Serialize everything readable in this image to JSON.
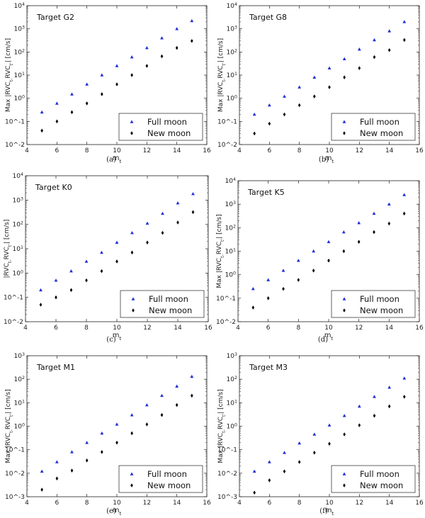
{
  "chart_data": [
    {
      "type": "scatter",
      "title": "Target G2",
      "caption": "(a)",
      "xlabel": "m_t",
      "ylabel": "Max |RVC_t-RVC_t'| [cm/s]",
      "xlim": [
        4,
        16
      ],
      "xticks": [
        "4",
        "6",
        "8",
        "10",
        "12",
        "14",
        "16"
      ],
      "yticks": [
        "10^-2",
        "10^-1",
        "10^0",
        "10^1",
        "10^2",
        "10^3",
        "10^4"
      ],
      "ylim_exp": [
        -2,
        4
      ],
      "legend_loc": "lower-right",
      "x": [
        5,
        6,
        7,
        8,
        9,
        10,
        11,
        12,
        13,
        14,
        15
      ],
      "series": [
        {
          "name": "Full moon",
          "values": [
            0.25,
            0.6,
            1.5,
            4,
            10,
            25,
            60,
            150,
            400,
            1000,
            2200
          ]
        },
        {
          "name": "New moon",
          "values": [
            0.04,
            0.1,
            0.25,
            0.6,
            1.5,
            4,
            10,
            25,
            65,
            150,
            300
          ]
        }
      ]
    },
    {
      "type": "scatter",
      "title": "Target G8",
      "caption": "(b)",
      "xlabel": "m_t",
      "ylabel": "Max |RVC_t-RVC_t'| [cm/s]",
      "xlim": [
        4,
        16
      ],
      "xticks": [
        "4",
        "6",
        "8",
        "10",
        "12",
        "14",
        "16"
      ],
      "yticks": [
        "10^-2",
        "10^-1",
        "10^0",
        "10^1",
        "10^2",
        "10^3",
        "10^4"
      ],
      "ylim_exp": [
        -2,
        4
      ],
      "legend_loc": "lower-right",
      "x": [
        5,
        6,
        7,
        8,
        9,
        10,
        11,
        12,
        13,
        14,
        15
      ],
      "series": [
        {
          "name": "Full moon",
          "values": [
            0.2,
            0.5,
            1.2,
            3,
            8,
            20,
            50,
            130,
            330,
            800,
            2000
          ]
        },
        {
          "name": "New moon",
          "values": [
            0.03,
            0.08,
            0.2,
            0.5,
            1.2,
            3,
            8,
            20,
            60,
            120,
            330
          ]
        }
      ]
    },
    {
      "type": "scatter",
      "title": "Target K0",
      "caption": "(c)",
      "xlabel": "m_t",
      "ylabel": "|RVC_t-RVC_t'| [cm/s]",
      "xlim": [
        4,
        16
      ],
      "xticks": [
        "4",
        "6",
        "8",
        "10",
        "12",
        "14",
        "16"
      ],
      "yticks": [
        "10^-2",
        "10^-1",
        "10^0",
        "10^1",
        "10^2",
        "10^3",
        "10^4"
      ],
      "ylim_exp": [
        -2,
        4
      ],
      "legend_loc": "lower-right",
      "x": [
        5,
        6,
        7,
        8,
        9,
        10,
        11,
        12,
        13,
        14,
        15
      ],
      "series": [
        {
          "name": "Full moon",
          "values": [
            0.2,
            0.5,
            1.2,
            3,
            7,
            18,
            45,
            110,
            280,
            750,
            1800
          ]
        },
        {
          "name": "New moon",
          "values": [
            0.05,
            0.1,
            0.2,
            0.5,
            1.2,
            3,
            7,
            18,
            45,
            120,
            320
          ]
        }
      ]
    },
    {
      "type": "scatter",
      "title": "Target K5",
      "caption": "(d)",
      "xlabel": "m_t",
      "ylabel": "Max |RVC_t-RVC_t'| [cm/s]",
      "xlim": [
        4,
        16
      ],
      "xticks": [
        "4",
        "6",
        "8",
        "10",
        "12",
        "14",
        "16"
      ],
      "yticks": [
        "10^-2",
        "10^-1",
        "10^0",
        "10^1",
        "10^2",
        "10^3",
        "10^4"
      ],
      "ylim_exp": [
        -2,
        4
      ],
      "legend_loc": "lower-right",
      "x": [
        5,
        6,
        7,
        8,
        9,
        10,
        11,
        12,
        13,
        14,
        15
      ],
      "series": [
        {
          "name": "Full moon",
          "values": [
            0.25,
            0.6,
            1.5,
            4,
            10,
            25,
            65,
            160,
            400,
            1000,
            2500
          ]
        },
        {
          "name": "New moon",
          "values": [
            0.04,
            0.1,
            0.25,
            0.6,
            1.5,
            4,
            10,
            25,
            65,
            150,
            400
          ]
        }
      ]
    },
    {
      "type": "scatter",
      "title": "Target M1",
      "caption": "(e)",
      "xlabel": "m_t",
      "ylabel": "Max |RVC_t-RVC_t'| [cm/s]",
      "xlim": [
        4,
        16
      ],
      "xticks": [
        "4",
        "6",
        "8",
        "10",
        "12",
        "14",
        "16"
      ],
      "yticks": [
        "10^-3",
        "10^-2",
        "10^-1",
        "10^0",
        "10^1",
        "10^2",
        "10^3"
      ],
      "ylim_exp": [
        -3,
        3
      ],
      "legend_loc": "lower-right",
      "x": [
        5,
        6,
        7,
        8,
        9,
        10,
        11,
        12,
        13,
        14,
        15
      ],
      "series": [
        {
          "name": "Full moon",
          "values": [
            0.012,
            0.03,
            0.08,
            0.2,
            0.5,
            1.2,
            3,
            8,
            20,
            50,
            130
          ]
        },
        {
          "name": "New moon",
          "values": [
            0.002,
            0.006,
            0.013,
            0.035,
            0.08,
            0.2,
            0.5,
            1.2,
            3,
            8,
            20
          ]
        }
      ]
    },
    {
      "type": "scatter",
      "title": "Target M3",
      "caption": "(f)",
      "xlabel": "m_t",
      "ylabel": "Max |RVC_t-RVC_t'| [cm/s]",
      "xlim": [
        4,
        16
      ],
      "xticks": [
        "4",
        "6",
        "8",
        "10",
        "12",
        "14",
        "16"
      ],
      "yticks": [
        "10^-3",
        "10^-2",
        "10^-1",
        "10^0",
        "10^1",
        "10^2",
        "10^3"
      ],
      "ylim_exp": [
        -3,
        3
      ],
      "legend_loc": "lower-right",
      "x": [
        5,
        6,
        7,
        8,
        9,
        10,
        11,
        12,
        13,
        14,
        15
      ],
      "series": [
        {
          "name": "Full moon",
          "values": [
            0.012,
            0.03,
            0.075,
            0.19,
            0.45,
            1.1,
            2.8,
            7,
            18,
            45,
            110
          ]
        },
        {
          "name": "New moon",
          "values": [
            0.0015,
            0.005,
            0.012,
            0.03,
            0.075,
            0.18,
            0.45,
            1.1,
            2.8,
            7,
            18
          ]
        }
      ]
    }
  ],
  "colors": {
    "full_moon": "#1f2fd6",
    "new_moon": "#000000"
  }
}
